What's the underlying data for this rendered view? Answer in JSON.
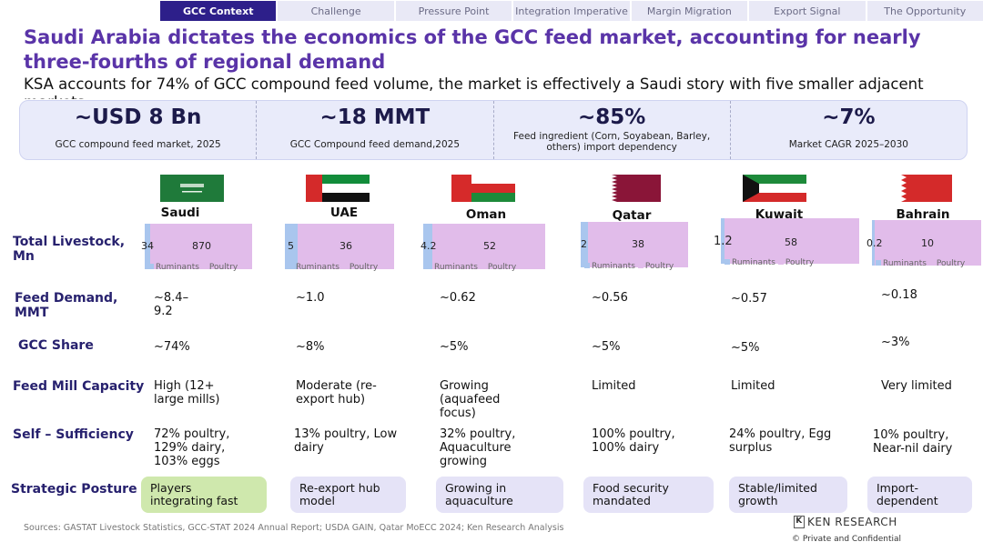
{
  "tabs": [
    {
      "label": "GCC Context",
      "active": true
    },
    {
      "label": "Challenge",
      "active": false
    },
    {
      "label": "Pressure Point",
      "active": false
    },
    {
      "label": "Integration Imperative",
      "active": false
    },
    {
      "label": "Margin Migration",
      "active": false
    },
    {
      "label": "Export Signal",
      "active": false
    },
    {
      "label": "The Opportunity",
      "active": false
    }
  ],
  "title": "Saudi Arabia dictates the economics of the GCC feed market, accounting for nearly three-fourths of regional demand",
  "subtitle": "KSA accounts for 74% of GCC compound feed volume, the market is effectively a Saudi story with five smaller adjacent markets",
  "kpis": [
    {
      "value": "~USD 8 Bn",
      "label": "GCC compound feed market, 2025"
    },
    {
      "value": "~18 MMT",
      "label": "GCC Compound feed demand,2025"
    },
    {
      "value": "~85%",
      "label": "Feed ingredient (Corn, Soyabean, Barley, others) import dependency"
    },
    {
      "value": "~7%",
      "label": "Market CAGR 2025–2030"
    }
  ],
  "row_labels": {
    "livestock": "Total Livestock, Mn",
    "feed_demand": "Feed Demand, MMT",
    "gcc_share": "GCC Share",
    "capacity": "Feed Mill Capacity",
    "self_sufficiency": "Self – Sufficiency",
    "posture": "Strategic Posture"
  },
  "legend": {
    "ruminants": "Ruminants",
    "poultry": "Poultry"
  },
  "colors": {
    "ruminants": "#a9c6ee",
    "poultry": "#e1bcea",
    "accent": "#2d1f8a",
    "title": "#5a34a8"
  },
  "countries": [
    {
      "name": "Saudi Arabia",
      "ruminants": "34",
      "poultry": "870",
      "feed_demand": "~8.4–9.2",
      "gcc_share": "~74%",
      "capacity": "High (12+ large mills)",
      "self_sufficiency": "72% poultry, 129% dairy, 103% eggs",
      "posture": "Players integrating fast"
    },
    {
      "name": "UAE",
      "ruminants": "5",
      "poultry": "36",
      "feed_demand": "~1.0",
      "gcc_share": "~8%",
      "capacity": "Moderate (re-export hub)",
      "self_sufficiency": "13% poultry, Low dairy",
      "posture": "Re-export hub model"
    },
    {
      "name": "Oman",
      "ruminants": "4.2",
      "poultry": "52",
      "feed_demand": "~0.62",
      "gcc_share": "~5%",
      "capacity": "Growing (aquafeed focus)",
      "self_sufficiency": "32% poultry, Aquaculture growing",
      "posture": "Growing in aquaculture"
    },
    {
      "name": "Qatar",
      "ruminants": "2",
      "poultry": "38",
      "feed_demand": "~0.56",
      "gcc_share": "~5%",
      "capacity": "Limited",
      "self_sufficiency": "100% poultry, 100% dairy",
      "posture": "Food security mandated"
    },
    {
      "name": "Kuwait",
      "ruminants": "1.2",
      "poultry": "58",
      "feed_demand": "~0.57",
      "gcc_share": "~5%",
      "capacity": "Limited",
      "self_sufficiency": "24% poultry, Egg surplus",
      "posture": "Stable/limited growth"
    },
    {
      "name": "Bahrain",
      "ruminants": "0.2",
      "poultry": "10",
      "feed_demand": "~0.18",
      "gcc_share": "~3%",
      "capacity": "Very limited",
      "self_sufficiency": "10% poultry, Near-nil dairy",
      "posture": "Import-dependent"
    }
  ],
  "sources": "Sources: GASTAT Livestock Statistics, GCC-STAT 2024 Annual Report; USDA GAIN, Qatar MoECC 2024; Ken Research Analysis",
  "logo_text": "KEN RESEARCH",
  "confidential": "©    Private and Confidential"
}
